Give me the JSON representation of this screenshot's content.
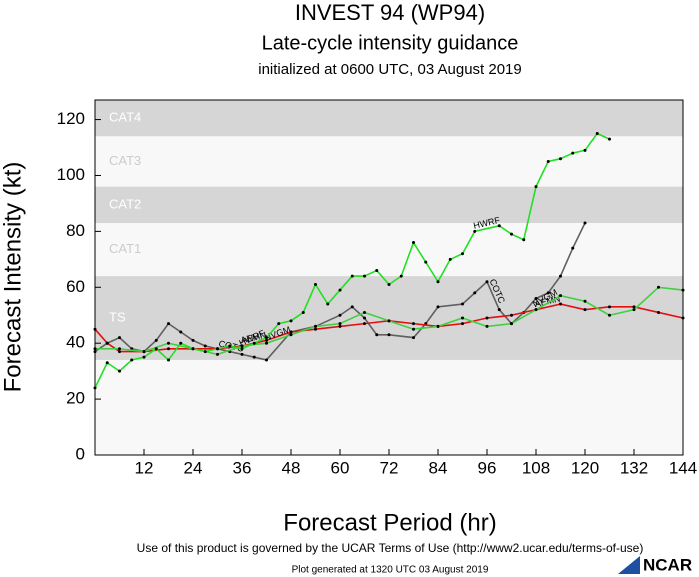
{
  "chart_data": {
    "type": "line",
    "title": "INVEST 94 (WP94)",
    "subtitle": "Late-cycle intensity guidance",
    "initialized": "initialized at 0600 UTC, 03 August 2019",
    "xlabel": "Forecast Period (hr)",
    "ylabel": "Forecast Intensity (kt)",
    "xlim": [
      0,
      144
    ],
    "xticks": [
      12,
      24,
      36,
      48,
      60,
      72,
      84,
      96,
      108,
      120,
      132,
      144
    ],
    "ylim": [
      0,
      127
    ],
    "yticks": [
      0,
      20,
      40,
      60,
      80,
      100,
      120
    ],
    "bands": [
      {
        "label": "CAT4",
        "from": 114,
        "to": 127,
        "color": "#d6d6d6"
      },
      {
        "label": "CAT3",
        "from": 96,
        "to": 114,
        "color": "#f8f8f8"
      },
      {
        "label": "CAT2",
        "from": 83,
        "to": 96,
        "color": "#d6d6d6"
      },
      {
        "label": "CAT1",
        "from": 64,
        "to": 83,
        "color": "#f8f8f8"
      },
      {
        "label": "TS",
        "from": 34,
        "to": 64,
        "color": "#d6d6d6"
      }
    ],
    "series": [
      {
        "name": "COTC",
        "color": "#606060",
        "x": [
          0,
          3,
          6,
          9,
          12,
          15,
          18,
          21,
          24,
          27,
          30,
          33,
          36,
          39,
          42,
          48,
          54,
          60,
          63,
          66,
          69,
          72,
          78,
          81,
          84,
          90,
          93,
          96,
          99,
          102,
          105,
          108,
          111,
          114,
          117,
          120
        ],
        "values": [
          37,
          40,
          42,
          38,
          37,
          41,
          47,
          44,
          41,
          39,
          38,
          37,
          36,
          35,
          34,
          44,
          46,
          50,
          53,
          49,
          43,
          43,
          42,
          47,
          53,
          54,
          58,
          62,
          52,
          47,
          51,
          56,
          58,
          64,
          74,
          83
        ]
      },
      {
        "name": "AEMN",
        "color": "#e01010",
        "x": [
          0,
          3,
          6,
          12,
          18,
          24,
          30,
          36,
          42,
          48,
          54,
          60,
          66,
          72,
          78,
          84,
          90,
          96,
          102,
          108,
          114,
          120,
          126,
          132,
          138,
          144
        ],
        "values": [
          45,
          40,
          37,
          37,
          38,
          38,
          38,
          39,
          41,
          44,
          45,
          46,
          47,
          48,
          47,
          46,
          47,
          49,
          50,
          52,
          54,
          52,
          53,
          53,
          51,
          49
        ]
      },
      {
        "name": "NVGM",
        "color": "#40d040",
        "x": [
          0,
          6,
          12,
          18,
          24,
          30,
          36,
          42,
          48,
          54,
          60,
          66,
          72,
          78,
          84,
          90,
          96,
          102,
          108,
          114,
          120,
          126,
          132,
          138,
          144
        ],
        "values": [
          38,
          38,
          37,
          40,
          38,
          36,
          39,
          40,
          43,
          46,
          47,
          51,
          48,
          45,
          46,
          49,
          46,
          47,
          52,
          57,
          55,
          50,
          52,
          60,
          59
        ]
      },
      {
        "name": "HWRF",
        "color": "#22e022",
        "x": [
          0,
          3,
          6,
          9,
          12,
          15,
          18,
          21,
          24,
          27,
          30,
          33,
          36,
          39,
          42,
          45,
          48,
          51,
          54,
          57,
          60,
          63,
          66,
          69,
          72,
          75,
          78,
          81,
          84,
          87,
          90,
          93,
          99,
          102,
          105,
          108,
          111,
          114,
          117,
          120,
          123,
          126
        ],
        "values": [
          24,
          33,
          30,
          34,
          35,
          38,
          34,
          40,
          38,
          37,
          38,
          39,
          38,
          40,
          42,
          47,
          48,
          51,
          61,
          54,
          59,
          64,
          64,
          66,
          61,
          64,
          76,
          69,
          62,
          70,
          72,
          80,
          82,
          79,
          77,
          96,
          105,
          106,
          108,
          109,
          115,
          113
        ]
      }
    ],
    "footer": "Use of this product is governed by the UCAR Terms of Use (http://www2.ucar.edu/terms-of-use)",
    "generated": "Plot generated at 1320 UTC  03 August 2019",
    "logo": "NCAR"
  }
}
